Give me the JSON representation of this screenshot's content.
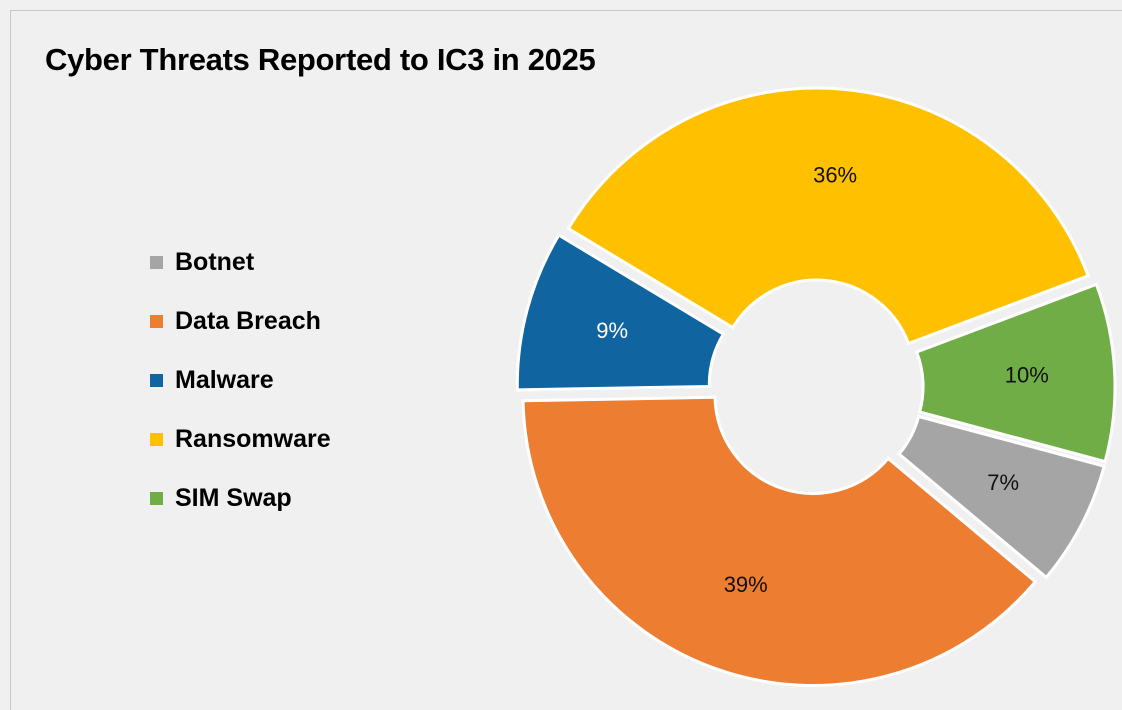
{
  "title": "Cyber Threats Reported to IC3 in 2025",
  "chart_data": {
    "type": "pie",
    "variant": "doughnut (exploded)",
    "title": "Cyber Threats Reported to IC3 in 2025",
    "legend_position": "left",
    "slices": [
      {
        "label": "Botnet",
        "value": 7,
        "value_label": "7%",
        "color": "#a5a5a5"
      },
      {
        "label": "Data Breach",
        "value": 39,
        "value_label": "39%",
        "color": "#ed7d31"
      },
      {
        "label": "Malware",
        "value": 9,
        "value_label": "9%",
        "color": "#1064a0"
      },
      {
        "label": "Ransomware",
        "value": 36,
        "value_label": "36%",
        "color": "#ffc000"
      },
      {
        "label": "SIM Swap",
        "value": 10,
        "value_label": "10%",
        "color": "#70ad47"
      }
    ]
  }
}
